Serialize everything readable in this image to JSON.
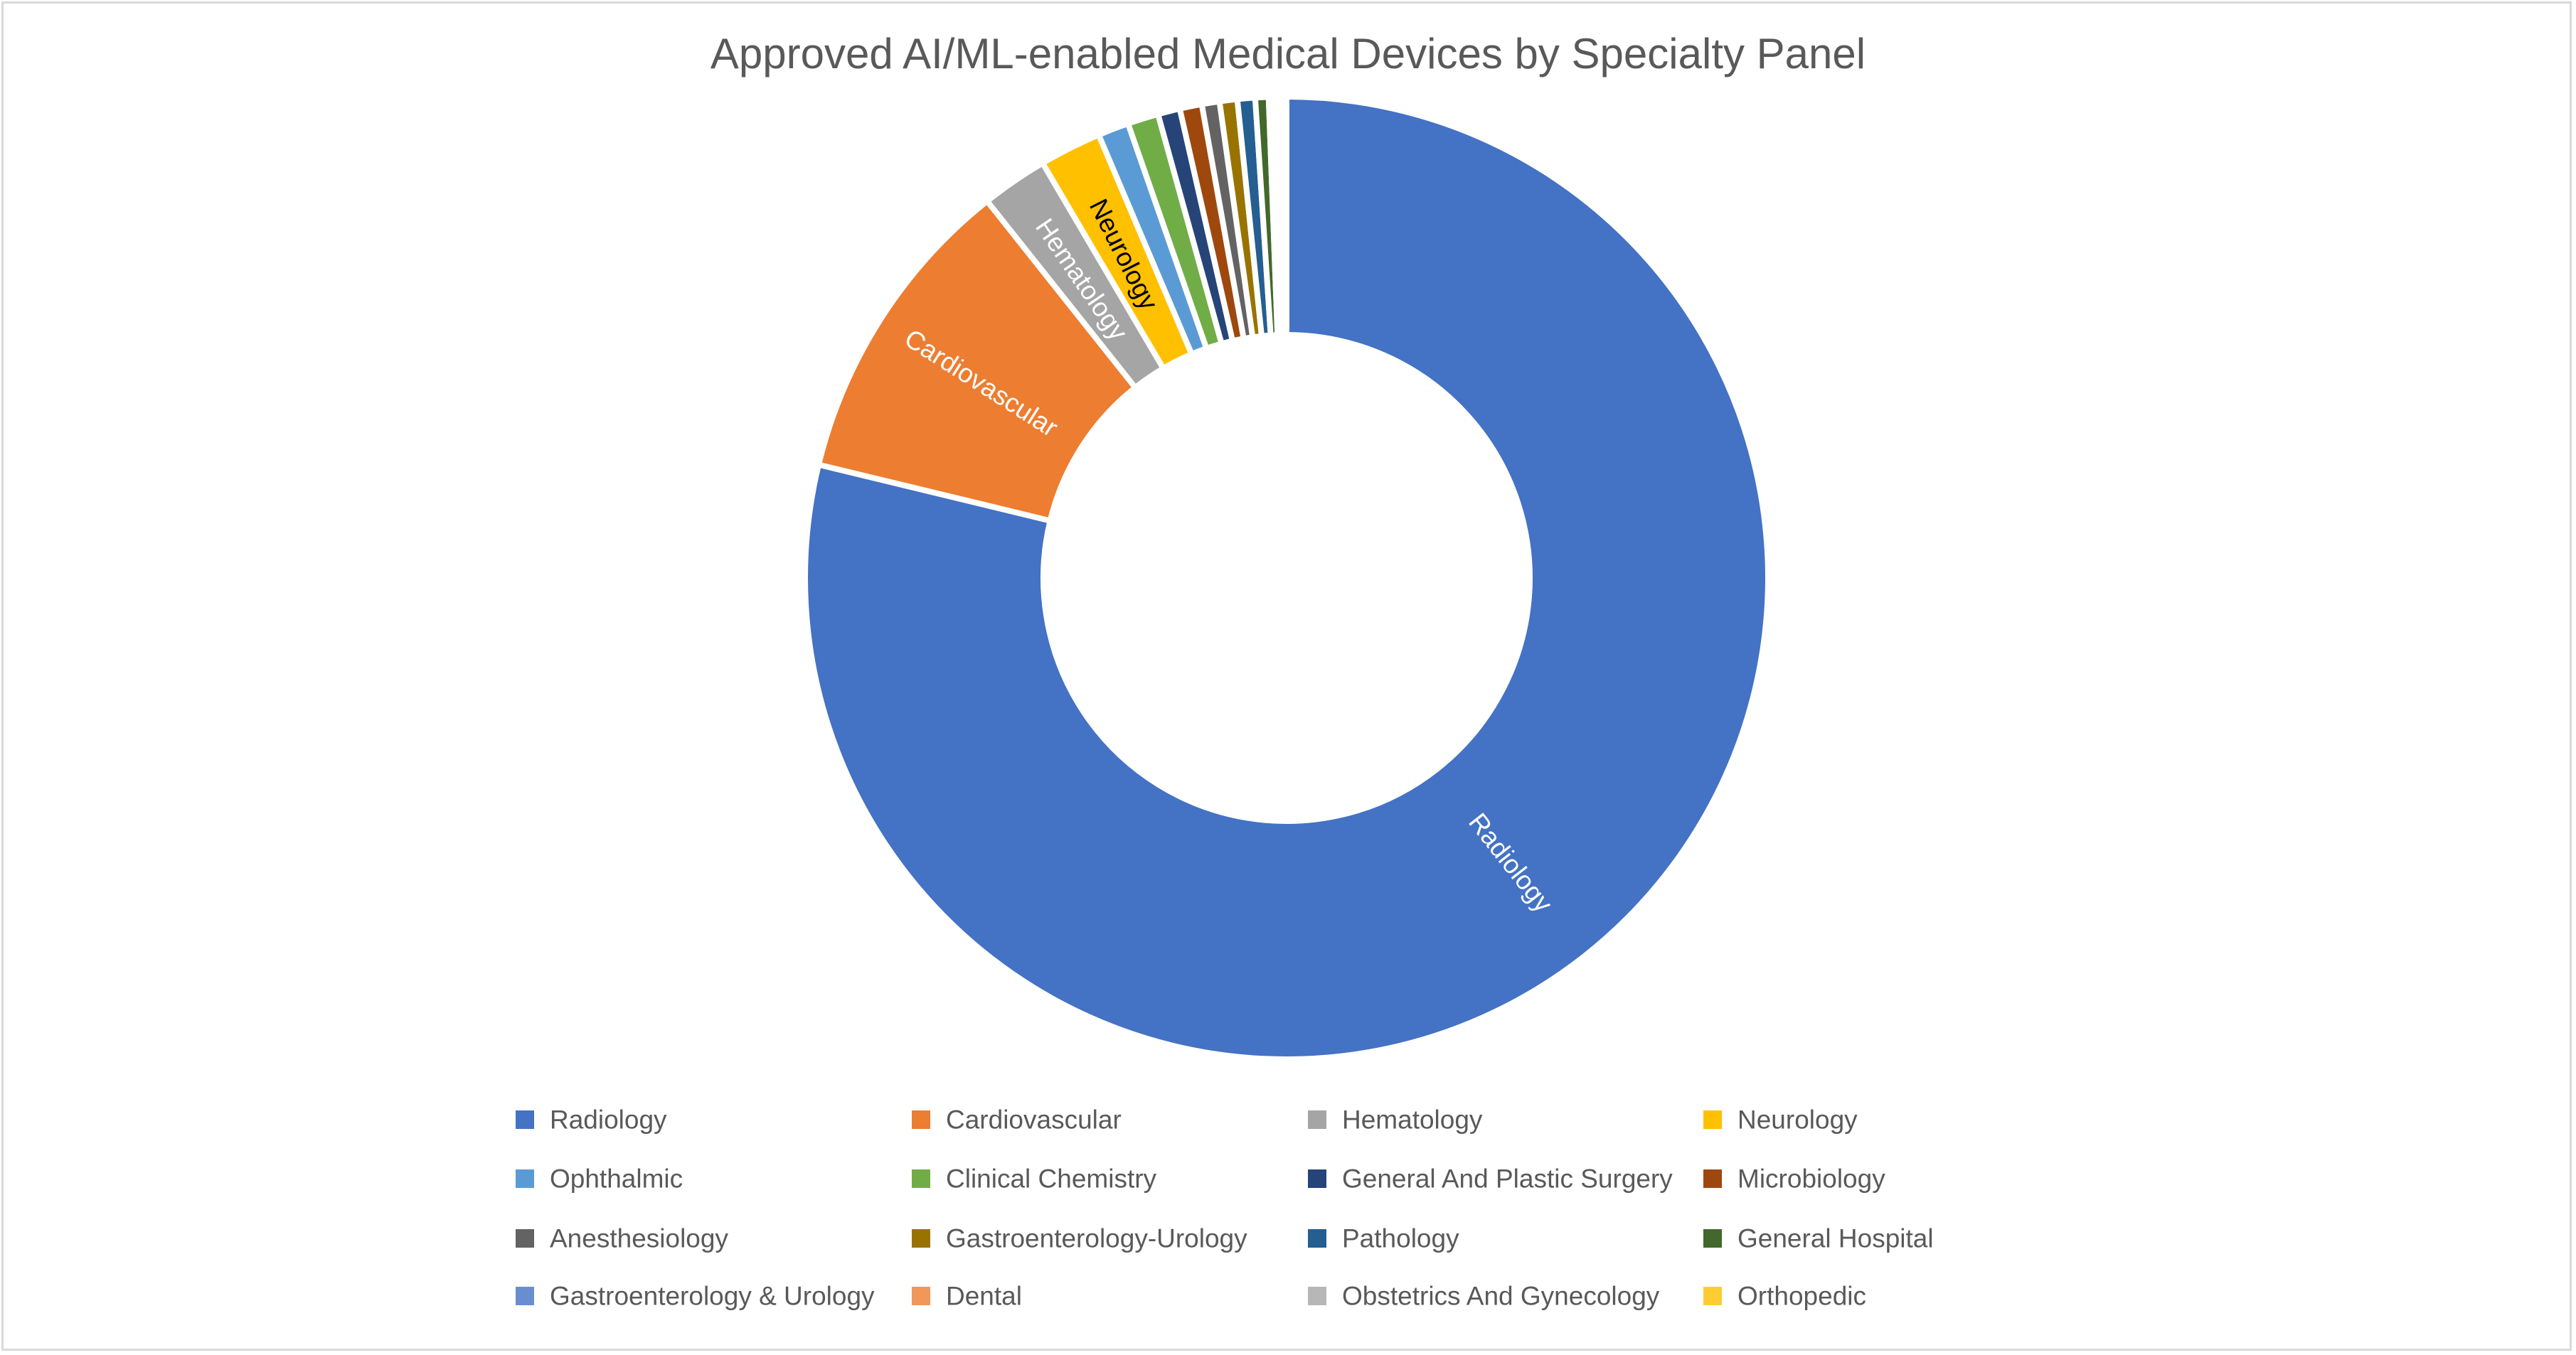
{
  "chart_data": {
    "type": "doughnut",
    "title": "Approved AI/ML-enabled Medical Devices by Specialty Panel",
    "legend_position": "bottom",
    "categories": [
      "Radiology",
      "Cardiovascular",
      "Hematology",
      "Neurology",
      "Ophthalmic",
      "Clinical Chemistry",
      "General And Plastic Surgery",
      "Microbiology",
      "Anesthesiology",
      "Gastroenterology-Urology",
      "Pathology",
      "General Hospital",
      "Gastroenterology & Urology",
      "Dental",
      "Obstetrics And Gynecology",
      "Orthopedic"
    ],
    "values": [
      531,
      71,
      15,
      14,
      7,
      7,
      5,
      5,
      4,
      4,
      4,
      3,
      1,
      1,
      1,
      1
    ],
    "colors": [
      "#4472C4",
      "#ED7D31",
      "#A5A5A5",
      "#FFC000",
      "#5B9BD5",
      "#70AD47",
      "#264478",
      "#9E480E",
      "#636363",
      "#997300",
      "#255E91",
      "#43682B",
      "#698ED0",
      "#F1975A",
      "#B7B7B7",
      "#FFCD33"
    ],
    "data_labels": [
      {
        "category": "Radiology",
        "text": "Radiology",
        "color": "#FFFFFF"
      },
      {
        "category": "Cardiovascular",
        "text": "Cardiovascular",
        "color": "#FFFFFF"
      },
      {
        "category": "Hematology",
        "text": "Hematology",
        "color": "#FFFFFF"
      },
      {
        "category": "Neurology",
        "text": "Neurology",
        "color": "#000000"
      }
    ]
  }
}
